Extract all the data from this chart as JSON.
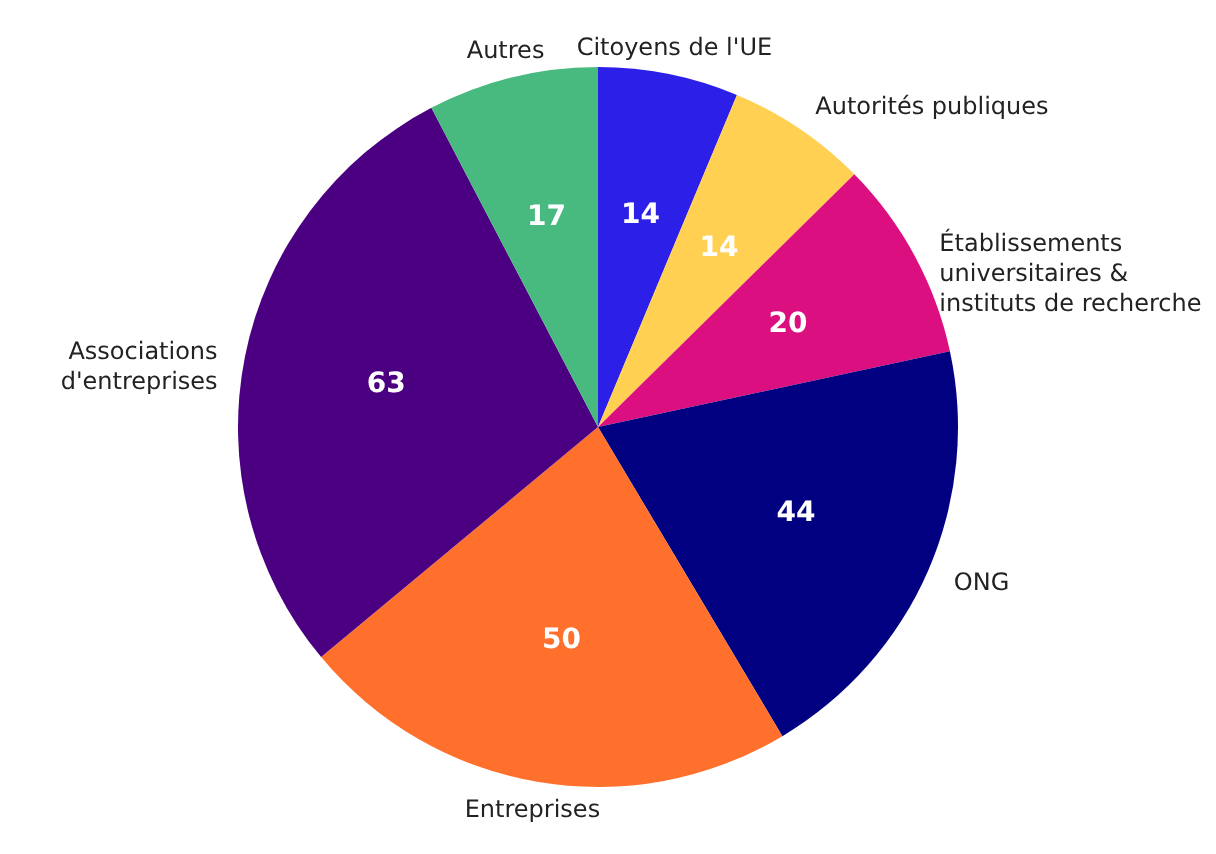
{
  "chart_data": {
    "type": "pie",
    "categories": [
      "Citoyens de l'UE",
      "Autorités publiques",
      "Établissements universitaires & instituts de recherche",
      "ONG",
      "Entreprises",
      "Associations d'entreprises",
      "Autres"
    ],
    "values": [
      14,
      14,
      20,
      44,
      50,
      63,
      17
    ],
    "colors": [
      "#2b1fe8",
      "#ffd052",
      "#dc0f80",
      "#000080",
      "#ff702d",
      "#4b0082",
      "#48b97f"
    ],
    "data_labels": true
  }
}
